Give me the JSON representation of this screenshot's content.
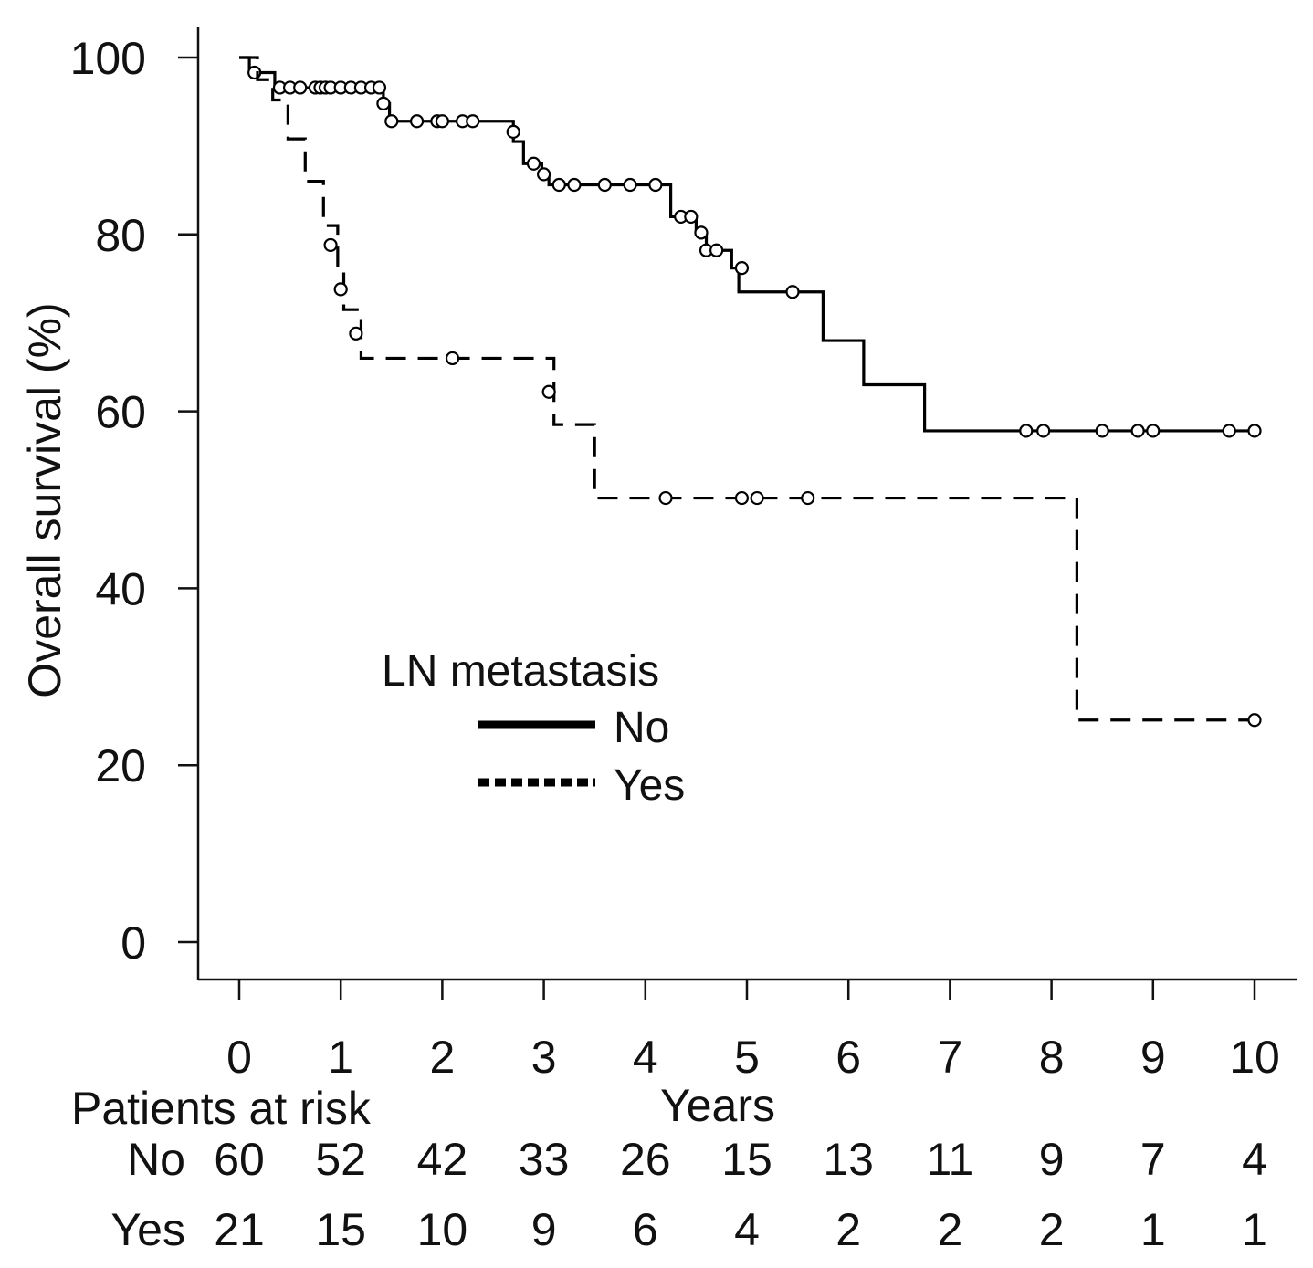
{
  "chart_data": {
    "type": "line",
    "subtype": "kaplan-meier",
    "xlabel": "Years",
    "ylabel": "Overall survival (%)",
    "xlim": [
      0,
      10
    ],
    "ylim": [
      0,
      100
    ],
    "xticks": [
      0,
      1,
      2,
      3,
      4,
      5,
      6,
      7,
      8,
      9,
      10
    ],
    "yticks": [
      0,
      20,
      40,
      60,
      80,
      100
    ],
    "legend": {
      "title": "LN metastasis",
      "position": "center",
      "entries": [
        {
          "name": "No",
          "style": "solid"
        },
        {
          "name": "Yes",
          "style": "dashed"
        }
      ]
    },
    "series": [
      {
        "name": "No",
        "style": "solid",
        "color": "#000000",
        "steps": [
          {
            "x": 0,
            "y": 100
          },
          {
            "x": 0.1,
            "y": 98.3
          },
          {
            "x": 0.35,
            "y": 96.6
          },
          {
            "x": 1.42,
            "y": 94.8
          },
          {
            "x": 1.48,
            "y": 92.8
          },
          {
            "x": 2.7,
            "y": 90.5
          },
          {
            "x": 2.8,
            "y": 88.0
          },
          {
            "x": 2.98,
            "y": 86.8
          },
          {
            "x": 3.05,
            "y": 85.6
          },
          {
            "x": 4.25,
            "y": 82.0
          },
          {
            "x": 4.5,
            "y": 80.2
          },
          {
            "x": 4.6,
            "y": 78.2
          },
          {
            "x": 4.85,
            "y": 76.2
          },
          {
            "x": 4.92,
            "y": 73.5
          },
          {
            "x": 5.75,
            "y": 68.0
          },
          {
            "x": 6.15,
            "y": 63.0
          },
          {
            "x": 6.75,
            "y": 57.8
          },
          {
            "x": 10.0,
            "y": 57.8
          }
        ],
        "censored": [
          {
            "x": 0.15,
            "y": 98.3
          },
          {
            "x": 0.4,
            "y": 96.6
          },
          {
            "x": 0.5,
            "y": 96.6
          },
          {
            "x": 0.6,
            "y": 96.6
          },
          {
            "x": 0.75,
            "y": 96.6
          },
          {
            "x": 0.8,
            "y": 96.6
          },
          {
            "x": 0.85,
            "y": 96.6
          },
          {
            "x": 0.9,
            "y": 96.6
          },
          {
            "x": 1.0,
            "y": 96.6
          },
          {
            "x": 1.1,
            "y": 96.6
          },
          {
            "x": 1.2,
            "y": 96.6
          },
          {
            "x": 1.3,
            "y": 96.6
          },
          {
            "x": 1.38,
            "y": 96.6
          },
          {
            "x": 1.42,
            "y": 94.8
          },
          {
            "x": 1.5,
            "y": 92.8
          },
          {
            "x": 1.75,
            "y": 92.8
          },
          {
            "x": 1.95,
            "y": 92.8
          },
          {
            "x": 2.0,
            "y": 92.8
          },
          {
            "x": 2.2,
            "y": 92.8
          },
          {
            "x": 2.3,
            "y": 92.8
          },
          {
            "x": 2.7,
            "y": 91.6
          },
          {
            "x": 2.9,
            "y": 88.0
          },
          {
            "x": 3.0,
            "y": 86.8
          },
          {
            "x": 3.15,
            "y": 85.6
          },
          {
            "x": 3.3,
            "y": 85.6
          },
          {
            "x": 3.6,
            "y": 85.6
          },
          {
            "x": 3.85,
            "y": 85.6
          },
          {
            "x": 4.1,
            "y": 85.6
          },
          {
            "x": 4.35,
            "y": 82.0
          },
          {
            "x": 4.45,
            "y": 82.0
          },
          {
            "x": 4.55,
            "y": 80.2
          },
          {
            "x": 4.6,
            "y": 78.2
          },
          {
            "x": 4.7,
            "y": 78.2
          },
          {
            "x": 4.95,
            "y": 76.2
          },
          {
            "x": 5.45,
            "y": 73.5
          },
          {
            "x": 7.75,
            "y": 57.8
          },
          {
            "x": 7.92,
            "y": 57.8
          },
          {
            "x": 8.5,
            "y": 57.8
          },
          {
            "x": 8.85,
            "y": 57.8
          },
          {
            "x": 9.0,
            "y": 57.8
          },
          {
            "x": 9.75,
            "y": 57.8
          },
          {
            "x": 10.0,
            "y": 57.8
          }
        ]
      },
      {
        "name": "Yes",
        "style": "dashed",
        "color": "#000000",
        "steps": [
          {
            "x": 0,
            "y": 100
          },
          {
            "x": 0.18,
            "y": 97.5
          },
          {
            "x": 0.33,
            "y": 95.2
          },
          {
            "x": 0.48,
            "y": 90.8
          },
          {
            "x": 0.65,
            "y": 86.0
          },
          {
            "x": 0.83,
            "y": 81.0
          },
          {
            "x": 0.97,
            "y": 76.0
          },
          {
            "x": 1.03,
            "y": 71.5
          },
          {
            "x": 1.2,
            "y": 66.0
          },
          {
            "x": 3.1,
            "y": 58.5
          },
          {
            "x": 3.5,
            "y": 50.2
          },
          {
            "x": 8.25,
            "y": 25.1
          },
          {
            "x": 10.0,
            "y": 25.1
          }
        ],
        "censored": [
          {
            "x": 0.9,
            "y": 78.8
          },
          {
            "x": 1.0,
            "y": 73.8
          },
          {
            "x": 1.15,
            "y": 68.8
          },
          {
            "x": 2.1,
            "y": 66.0
          },
          {
            "x": 3.05,
            "y": 62.2
          },
          {
            "x": 4.2,
            "y": 50.2
          },
          {
            "x": 4.95,
            "y": 50.2
          },
          {
            "x": 5.1,
            "y": 50.2
          },
          {
            "x": 5.6,
            "y": 50.2
          },
          {
            "x": 10.0,
            "y": 25.1
          }
        ]
      }
    ],
    "risk_table": {
      "title": "Patients at risk",
      "rows": [
        {
          "label": "No",
          "values": [
            60,
            52,
            42,
            33,
            26,
            15,
            13,
            11,
            9,
            7,
            4
          ]
        },
        {
          "label": "Yes",
          "values": [
            21,
            15,
            10,
            9,
            6,
            4,
            2,
            2,
            2,
            1,
            1
          ]
        }
      ]
    }
  }
}
